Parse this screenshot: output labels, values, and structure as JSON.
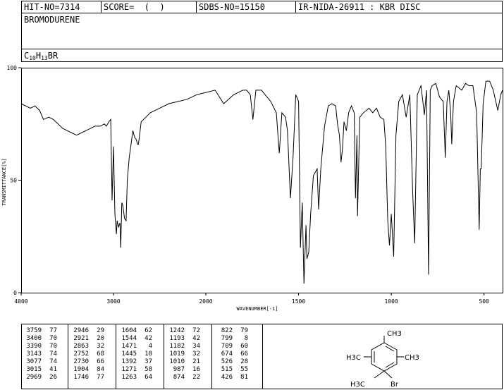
{
  "header": {
    "hit_no": "HIT-NO=7314",
    "score": "SCORE=  (  )",
    "sdbs_no": "SDBS-NO=15150",
    "ir_nida": "IR-NIDA-26911 : KBR DISC"
  },
  "compound": {
    "name": "BROMODURENE",
    "formula_prefix": "C",
    "formula_c_count": "10",
    "formula_h": "H",
    "formula_h_count": "13",
    "formula_suffix": "BR"
  },
  "chart_data": {
    "type": "line",
    "xlabel": "WAVENUMBER[-1]",
    "ylabel": "TRANSMITTANCE[%]",
    "xlim": [
      4000,
      400
    ],
    "ylim": [
      0,
      100
    ],
    "x_ticks": [
      "4000",
      "3000",
      "2000",
      "1500",
      "1000",
      "500"
    ],
    "y_ticks": [
      "100",
      "50",
      "0"
    ],
    "x_tick_values": [
      4000,
      3000,
      2000,
      1500,
      1000,
      500
    ],
    "y_tick_values": [
      100,
      50,
      0
    ],
    "series": [
      {
        "x": [
          4000,
          3950,
          3900,
          3850,
          3800,
          3759,
          3700,
          3650,
          3600,
          3550,
          3500,
          3450,
          3400,
          3350,
          3300,
          3250,
          3200,
          3143,
          3100,
          3077,
          3050,
          3030,
          3015,
          3000,
          2985,
          2969,
          2960,
          2946,
          2940,
          2930,
          2921,
          2910,
          2900,
          2880,
          2863,
          2850,
          2830,
          2810,
          2790,
          2770,
          2752,
          2740,
          2730,
          2700,
          2650,
          2600,
          2500,
          2400,
          2300,
          2200,
          2100,
          2000,
          1950,
          1904,
          1850,
          1800,
          1780,
          1760,
          1746,
          1730,
          1700,
          1650,
          1620,
          1604,
          1590,
          1570,
          1560,
          1544,
          1530,
          1515,
          1500,
          1490,
          1480,
          1471,
          1460,
          1455,
          1445,
          1435,
          1420,
          1400,
          1392,
          1380,
          1360,
          1340,
          1320,
          1300,
          1290,
          1280,
          1271,
          1263,
          1255,
          1242,
          1230,
          1215,
          1200,
          1193,
          1185,
          1182,
          1170,
          1150,
          1120,
          1100,
          1080,
          1060,
          1040,
          1030,
          1019,
          1010,
          1000,
          987,
          975,
          960,
          940,
          920,
          900,
          885,
          874,
          860,
          850,
          840,
          830,
          822,
          810,
          799,
          790,
          780,
          760,
          740,
          720,
          709,
          700,
          690,
          680,
          674,
          665,
          650,
          620,
          600,
          580,
          560,
          540,
          526,
          520,
          515,
          505,
          490,
          470,
          450,
          426,
          410,
          400
        ],
        "y": [
          84,
          83,
          82,
          83,
          81,
          77,
          78,
          77,
          75,
          73,
          72,
          71,
          70,
          71,
          72,
          73,
          74,
          74,
          75,
          74,
          76,
          77,
          41,
          65,
          35,
          26,
          32,
          29,
          30,
          31,
          20,
          40,
          39,
          33,
          32,
          50,
          60,
          66,
          72,
          69,
          68,
          66,
          66,
          76,
          78,
          80,
          82,
          84,
          85,
          86,
          88,
          89,
          90,
          84,
          88,
          90,
          90,
          88,
          77,
          90,
          90,
          85,
          80,
          62,
          80,
          78,
          72,
          42,
          60,
          88,
          85,
          20,
          40,
          4,
          30,
          15,
          18,
          35,
          52,
          55,
          37,
          55,
          74,
          83,
          84,
          83,
          75,
          70,
          58,
          64,
          76,
          72,
          80,
          83,
          80,
          42,
          70,
          34,
          78,
          80,
          82,
          80,
          82,
          78,
          77,
          65,
          32,
          21,
          35,
          16,
          70,
          85,
          88,
          78,
          88,
          45,
          22,
          88,
          90,
          92,
          85,
          79,
          90,
          8,
          90,
          92,
          93,
          87,
          85,
          60,
          85,
          90,
          80,
          66,
          85,
          92,
          90,
          93,
          92,
          92,
          80,
          28,
          55,
          55,
          84,
          94,
          94,
          90,
          81,
          88,
          90
        ]
      }
    ],
    "peak_table": [
      [
        [
          "3759",
          "77"
        ],
        [
          "3400",
          "70"
        ],
        [
          "3390",
          "70"
        ],
        [
          "3143",
          "74"
        ],
        [
          "3077",
          "74"
        ],
        [
          "3015",
          "41"
        ],
        [
          "2969",
          "26"
        ]
      ],
      [
        [
          "2946",
          "29"
        ],
        [
          "2921",
          "20"
        ],
        [
          "2863",
          "32"
        ],
        [
          "2752",
          "68"
        ],
        [
          "2730",
          "66"
        ],
        [
          "1904",
          "84"
        ],
        [
          "1746",
          "77"
        ]
      ],
      [
        [
          "1604",
          "62"
        ],
        [
          "1544",
          "42"
        ],
        [
          "1471",
          "4"
        ],
        [
          "1445",
          "18"
        ],
        [
          "1392",
          "37"
        ],
        [
          "1271",
          "58"
        ],
        [
          "1263",
          "64"
        ]
      ],
      [
        [
          "1242",
          "72"
        ],
        [
          "1193",
          "42"
        ],
        [
          "1182",
          "34"
        ],
        [
          "1019",
          "32"
        ],
        [
          "1010",
          "21"
        ],
        [
          "987",
          "16"
        ],
        [
          "874",
          "22"
        ]
      ],
      [
        [
          "822",
          "79"
        ],
        [
          "799",
          "8"
        ],
        [
          "709",
          "60"
        ],
        [
          "674",
          "66"
        ],
        [
          "526",
          "28"
        ],
        [
          "515",
          "55"
        ],
        [
          "426",
          "81"
        ]
      ]
    ]
  },
  "structure": {
    "label_ch3_top": "CH3",
    "label_ch3_right": "CH3",
    "label_ch3_left": "H3C",
    "label_ch3_bottom": "H3C",
    "label_br": "Br"
  }
}
